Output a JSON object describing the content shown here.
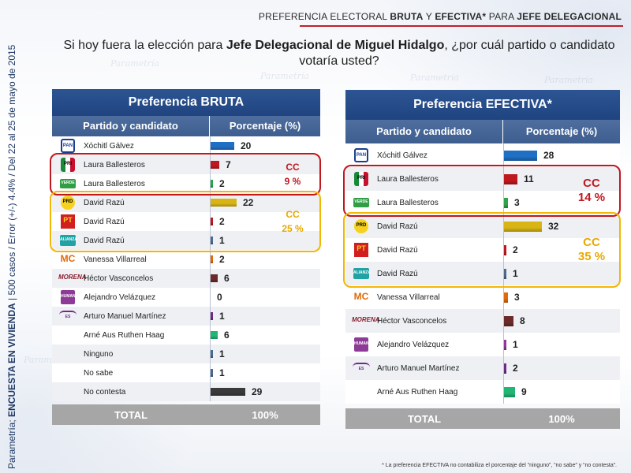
{
  "header": {
    "title_pre": "PREFERENCIA ELECTORAL ",
    "title_b1": "BRUTA",
    "title_mid": " Y ",
    "title_b2": "EFECTIVA*",
    "title_mid2": " PARA ",
    "title_b3": "JEFE DELEGACIONAL"
  },
  "side_text": {
    "pre": "Parametría; ",
    "bold": "ENCUESTA EN VIVIENDA",
    "post": " | 500 casos / Error (+/-) 4.4% / Del 22 al 25 de mayo de 2015"
  },
  "question": {
    "pre": "Si hoy fuera la elección para ",
    "bold": "Jefe Delegacional de Miguel Hidalgo",
    "post": ", ¿por cuál partido o candidato votaría usted?"
  },
  "watermark": "Parametría",
  "colors": {
    "pan": "#1f6fc4",
    "pri": "#c0181f",
    "verde": "#2fa34a",
    "prd": "#d8b514",
    "pt": "#c0181f",
    "alianza": "#4b6a8e",
    "mc": "#2d3a5c",
    "morena": "#6b2b2b",
    "hum": "#3a3a3a",
    "es": "#4a3f5e",
    "ind": "#22b573",
    "ninguno": "#4a6a8e",
    "nosabe": "#4a6a8e",
    "nocontesta": "#3a3a3a",
    "cc_red": "#c0181f",
    "cc_yellow": "#f2b705",
    "cc_yellow_text": "#e7a800"
  },
  "chart_data": [
    {
      "type": "bar",
      "title": "Preferencia BRUTA",
      "col_left": "Partido y candidato",
      "col_right": "Porcentaje (%)",
      "rows": [
        {
          "party": "PAN",
          "logo": "pan-logo",
          "name": "Xóchitl Gálvez",
          "value": 20,
          "color": "#1f6fc4"
        },
        {
          "party": "PRI",
          "logo": "pri-logo",
          "name": "Laura Ballesteros",
          "value": 7,
          "color": "#c0181f"
        },
        {
          "party": "VERDE",
          "logo": "verde-logo",
          "name": "Laura Ballesteros",
          "value": 2,
          "color": "#2fa34a"
        },
        {
          "party": "PRD",
          "logo": "prd-logo",
          "name": "David Razú",
          "value": 22,
          "color": "#d8b514"
        },
        {
          "party": "PT",
          "logo": "pt-logo",
          "name": "David Razú",
          "value": 2,
          "color": "#c0181f"
        },
        {
          "party": "ALIANZA",
          "logo": "alianza-logo",
          "name": "David Razú",
          "value": 1,
          "color": "#4b6a8e"
        },
        {
          "party": "MC",
          "logo": "mc-logo",
          "name": "Vanessa Villarreal",
          "value": 2,
          "color": "#e06a0a"
        },
        {
          "party": "MORENA",
          "logo": "morena-logo",
          "name": "Héctor Vasconcelos",
          "value": 6,
          "color": "#6b2b2b"
        },
        {
          "party": "HUMANISTA",
          "logo": "humanista-logo",
          "name": "Alejandro Velázquez",
          "value": 0,
          "color": "#8e3a97"
        },
        {
          "party": "ES",
          "logo": "es-logo",
          "name": "Arturo Manuel Martínez",
          "value": 1,
          "color": "#6b2d86"
        },
        {
          "party": "",
          "logo": "",
          "name": "Arné Aus Ruthen Haag",
          "value": 6,
          "color": "#22b573"
        },
        {
          "party": "",
          "logo": "",
          "name": "Ninguno",
          "value": 1,
          "color": "#4a6a8e"
        },
        {
          "party": "",
          "logo": "",
          "name": "No sabe",
          "value": 1,
          "color": "#4a6a8e"
        },
        {
          "party": "",
          "logo": "",
          "name": "No contesta",
          "value": 29,
          "color": "#3a3a3a"
        }
      ],
      "total_label": "TOTAL",
      "total_value": "100%",
      "cc": [
        {
          "label": "CC",
          "value": "9 %",
          "rows": [
            1,
            2
          ],
          "color": "red"
        },
        {
          "label": "CC",
          "value": "25 %",
          "rows": [
            3,
            5
          ],
          "color": "yellow"
        }
      ]
    },
    {
      "type": "bar",
      "title": "Preferencia EFECTIVA*",
      "col_left": "Partido y candidato",
      "col_right": "Porcentaje (%)",
      "rows": [
        {
          "party": "PAN",
          "logo": "pan-logo",
          "name": "Xóchitl Gálvez",
          "value": 28,
          "color": "#1f6fc4"
        },
        {
          "party": "PRI",
          "logo": "pri-logo",
          "name": "Laura Ballesteros",
          "value": 11,
          "color": "#c0181f"
        },
        {
          "party": "VERDE",
          "logo": "verde-logo",
          "name": "Laura Ballesteros",
          "value": 3,
          "color": "#2fa34a"
        },
        {
          "party": "PRD",
          "logo": "prd-logo",
          "name": "David Razú",
          "value": 32,
          "color": "#d8b514"
        },
        {
          "party": "PT",
          "logo": "pt-logo",
          "name": "David Razú",
          "value": 2,
          "color": "#c0181f"
        },
        {
          "party": "ALIANZA",
          "logo": "alianza-logo",
          "name": "David Razú",
          "value": 1,
          "color": "#4b6a8e"
        },
        {
          "party": "MC",
          "logo": "mc-logo",
          "name": "Vanessa Villarreal",
          "value": 3,
          "color": "#e06a0a"
        },
        {
          "party": "MORENA",
          "logo": "morena-logo",
          "name": "Héctor Vasconcelos",
          "value": 8,
          "color": "#6b2b2b"
        },
        {
          "party": "HUMANISTA",
          "logo": "humanista-logo",
          "name": "Alejandro Velázquez",
          "value": 1,
          "color": "#8e3a97"
        },
        {
          "party": "ES",
          "logo": "es-logo",
          "name": "Arturo Manuel Martínez",
          "value": 2,
          "color": "#6b2d86"
        },
        {
          "party": "",
          "logo": "",
          "name": "Arné Aus Ruthen Haag",
          "value": 9,
          "color": "#22b573"
        }
      ],
      "total_label": "TOTAL",
      "total_value": "100%",
      "cc": [
        {
          "label": "CC",
          "value": "14 %",
          "rows": [
            1,
            2
          ],
          "color": "red"
        },
        {
          "label": "CC",
          "value": "35 %",
          "rows": [
            3,
            5
          ],
          "color": "yellow"
        }
      ]
    }
  ],
  "footnote": "* La preferencia EFECTIVA no contabiliza el porcentaje del “ninguno”, “no sabe” y “no contesta”."
}
